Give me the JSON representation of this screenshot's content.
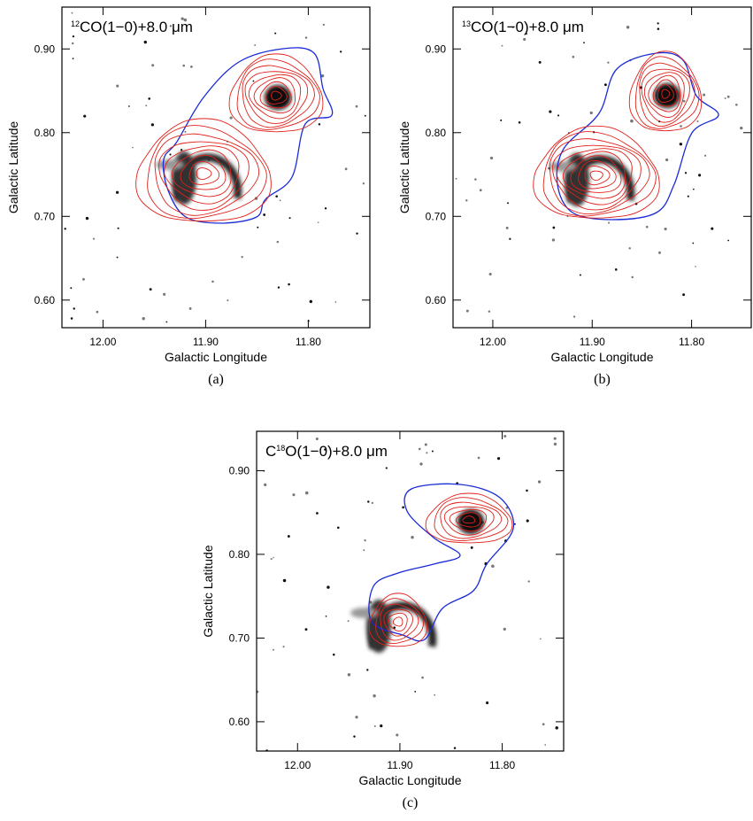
{
  "chart_data": [
    {
      "type": "contour",
      "caption": "(a)",
      "title": [
        {
          "text": "12",
          "sup": true
        },
        {
          "text": "CO(1−0)+8.0 μm"
        }
      ],
      "x_label": "Galactic Longitude",
      "y_label": "Galactic Latitude",
      "xlim": [
        12.04,
        11.74
      ],
      "ylim": [
        0.567,
        0.95
      ],
      "xticks": [
        {
          "value": 12,
          "label": "12.00"
        },
        {
          "value": 11.9,
          "label": "11.90"
        },
        {
          "value": 11.8,
          "label": "11.80"
        }
      ],
      "yticks": [
        {
          "value": 0.6,
          "label": "0.60"
        },
        {
          "value": 0.7,
          "label": "0.70"
        },
        {
          "value": 0.8,
          "label": "0.80"
        },
        {
          "value": 0.9,
          "label": "0.90"
        }
      ]
    },
    {
      "type": "contour",
      "caption": "(b)",
      "title": [
        {
          "text": "13",
          "sup": true
        },
        {
          "text": "CO(1−0)+8.0 μm"
        }
      ],
      "x_label": "Galactic Longitude",
      "y_label": "Galactic Latitude",
      "xlim": [
        12.04,
        11.74
      ],
      "ylim": [
        0.567,
        0.95
      ],
      "xticks": [
        {
          "value": 12,
          "label": "12.00"
        },
        {
          "value": 11.9,
          "label": "11.90"
        },
        {
          "value": 11.8,
          "label": "11.80"
        }
      ],
      "yticks": [
        {
          "value": 0.6,
          "label": "0.60"
        },
        {
          "value": 0.7,
          "label": "0.70"
        },
        {
          "value": 0.8,
          "label": "0.80"
        },
        {
          "value": 0.9,
          "label": "0.90"
        }
      ]
    },
    {
      "type": "contour",
      "caption": "(c)",
      "title": [
        {
          "text": "C"
        },
        {
          "text": "18",
          "sup": true
        },
        {
          "text": "O(1−0)+8.0 μm"
        }
      ],
      "x_label": "Galactic Longitude",
      "y_label": "Galactic Latitude",
      "xlim": [
        12.04,
        11.74
      ],
      "ylim": [
        0.565,
        0.947
      ],
      "xticks": [
        {
          "value": 12,
          "label": "12.00"
        },
        {
          "value": 11.9,
          "label": "11.90"
        },
        {
          "value": 11.8,
          "label": "11.80"
        }
      ],
      "yticks": [
        {
          "value": 0.6,
          "label": "0.60"
        },
        {
          "value": 0.7,
          "label": "0.70"
        },
        {
          "value": 0.8,
          "label": "0.80"
        },
        {
          "value": 0.9,
          "label": "0.90"
        }
      ]
    }
  ]
}
